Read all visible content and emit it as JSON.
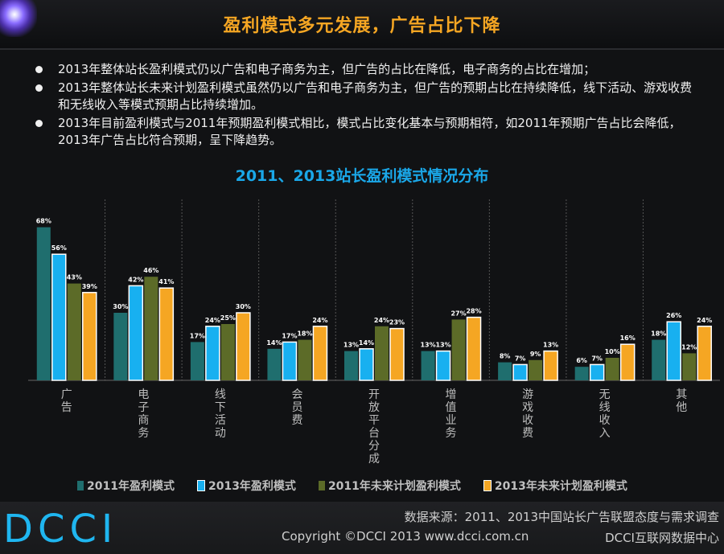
{
  "header": {
    "title": "盈利模式多元发展，广告占比下降"
  },
  "bullets": [
    "2013年整体站长盈利模式仍以广告和电子商务为主，但广告的占比在降低，电子商务的占比在增加；",
    "2013年整体站长未来计划盈利模式虽然仍以广告和电子商务为主，但广告的预期占比在持续降低，线下活动、游戏收费和无线收入等模式预期占比持续增加。",
    "2013年目前盈利模式与2011年预期盈利模式相比，模式占比变化基本与预期相符，如2011年预期广告占比会降低，2013年广告占比符合预期，呈下降趋势。"
  ],
  "chart_data": {
    "type": "bar",
    "title": "2011、2013站长盈利模式情况分布",
    "categories": [
      "广告",
      "电子商务",
      "线下活动",
      "会员费",
      "开放平台分成",
      "增值业务",
      "游戏收费",
      "无线收入",
      "其他"
    ],
    "series": [
      {
        "name": "2011年盈利模式",
        "color": "#1f6e6e",
        "values": [
          68,
          30,
          17,
          14,
          13,
          13,
          8,
          6,
          18
        ]
      },
      {
        "name": "2013年盈利模式",
        "color": "#18b0f0",
        "values": [
          56,
          42,
          24,
          17,
          14,
          13,
          7,
          7,
          26
        ]
      },
      {
        "name": "2011年未来计划盈利模式",
        "color": "#5c6b28",
        "values": [
          43,
          46,
          25,
          18,
          24,
          27,
          9,
          10,
          12
        ]
      },
      {
        "name": "2013年未来计划盈利模式",
        "color": "#f5a623",
        "values": [
          39,
          41,
          30,
          24,
          23,
          28,
          13,
          16,
          24
        ]
      }
    ],
    "value_suffix": "%",
    "ylim": [
      0,
      75
    ],
    "legend_position": "bottom",
    "grid": false
  },
  "footer": {
    "logo": "DCCI",
    "source": "数据来源：2011、2013中国站长广告联盟态度与需求调查",
    "copyright": "Copyright ©DCCI 2013 www.dcci.com.cn",
    "company": "DCCI互联网数据中心"
  }
}
